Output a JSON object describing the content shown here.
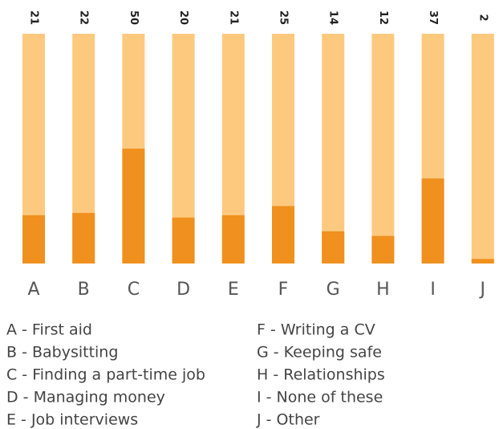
{
  "chart_data": {
    "type": "bar",
    "categories": [
      "A",
      "B",
      "C",
      "D",
      "E",
      "F",
      "G",
      "H",
      "I",
      "J"
    ],
    "values": [
      21,
      22,
      50,
      20,
      21,
      25,
      14,
      12,
      37,
      2
    ],
    "color": "#f0901e",
    "track_color": "#fdc97f",
    "ylim": [
      0,
      100
    ],
    "legend_text": [
      "A - First aid",
      "B - Babysitting",
      "C - Finding a part-time job",
      "D - Managing money",
      "E - Job interviews",
      "F - Writing a CV",
      "G - Keeping safe",
      "H - Relationships",
      "I - None of these",
      "J - Other"
    ]
  }
}
